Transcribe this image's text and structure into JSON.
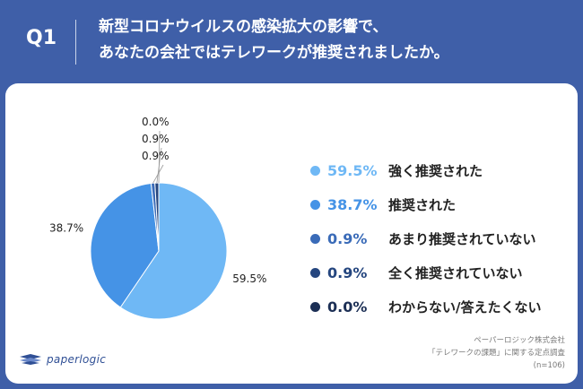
{
  "header": {
    "qnum": "Q1",
    "question_line1": "新型コロナウイルスの感染拡大の影響で、",
    "question_line2": "あなたの会社ではテレワークが推奨されましたか。"
  },
  "chart_data": {
    "type": "pie",
    "title": "",
    "slices": [
      {
        "label": "強く推奨された",
        "value": 59.5,
        "display": "59.5%",
        "color": "#6fb8f5"
      },
      {
        "label": "推奨された",
        "value": 38.7,
        "display": "38.7%",
        "color": "#4593e6"
      },
      {
        "label": "あまり推奨されていない",
        "value": 0.9,
        "display": "0.9%",
        "color": "#3a6bb8"
      },
      {
        "label": "全く推奨されていない",
        "value": 0.9,
        "display": "0.9%",
        "color": "#25467f"
      },
      {
        "label": "わからない/答えたくない",
        "value": 0.0,
        "display": "0.0%",
        "color": "#1c2f55"
      }
    ],
    "legend_position": "right",
    "start_angle_deg": 0,
    "direction": "clockwise"
  },
  "footer": {
    "logo_name": "paperlogic",
    "logo_icon": "paperlogic-logo-icon",
    "source_line1": "ペーパーロジック株式会社",
    "source_line2": "「テレワークの課題」に関する定点調査",
    "source_line3": "(n=106)"
  }
}
